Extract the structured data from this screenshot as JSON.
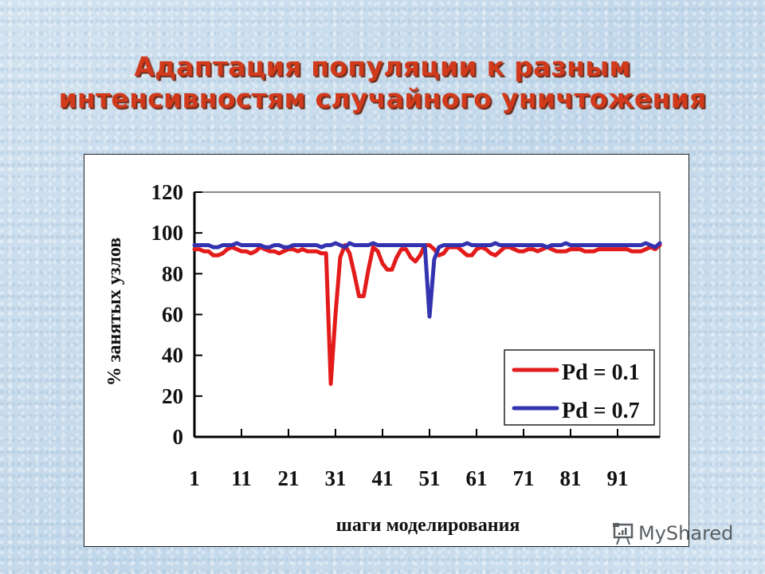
{
  "slide": {
    "title_line1": "Адаптация популяции к разным",
    "title_line2": "интенсивностям случайного уничтожения"
  },
  "watermark": {
    "text": "MyShared",
    "icon": "presentation-board-icon"
  },
  "colors": {
    "title": "#d23a1c",
    "series_pd01": "#e31b1b",
    "series_pd07": "#3333b0"
  },
  "chart_data": {
    "type": "line",
    "title": "",
    "xlabel": "шаги моделирования",
    "ylabel": "% занятых узлов",
    "ylim": [
      0,
      120
    ],
    "xlim": [
      1,
      100
    ],
    "yticks": [
      "0",
      "20",
      "40",
      "60",
      "80",
      "100",
      "120"
    ],
    "xticks": [
      "1",
      "11",
      "21",
      "31",
      "41",
      "51",
      "61",
      "71",
      "81",
      "91"
    ],
    "grid": false,
    "legend_position": "lower right (inside plot)",
    "series": [
      {
        "name": "Pd = 0.1",
        "color": "#e31b1b",
        "values": [
          92,
          92,
          91,
          91,
          89,
          89,
          90,
          92,
          93,
          92,
          91,
          91,
          90,
          91,
          93,
          92,
          91,
          91,
          90,
          91,
          92,
          92,
          91,
          92,
          91,
          91,
          91,
          90,
          90,
          26,
          60,
          88,
          94,
          90,
          80,
          69,
          69,
          82,
          93,
          91,
          85,
          82,
          82,
          88,
          92,
          92,
          88,
          86,
          89,
          94,
          94,
          92,
          89,
          90,
          93,
          93,
          93,
          91,
          89,
          89,
          92,
          93,
          92,
          90,
          89,
          91,
          93,
          93,
          92,
          91,
          91,
          92,
          92,
          91,
          92,
          93,
          92,
          91,
          91,
          91,
          92,
          92,
          92,
          91,
          91,
          91,
          92,
          92,
          92,
          92,
          92,
          92,
          92,
          91,
          91,
          91,
          92,
          93,
          92,
          94
        ]
      },
      {
        "name": "Pd = 0.7",
        "color": "#3333b0",
        "values": [
          94,
          94,
          94,
          94,
          93,
          93,
          94,
          94,
          94,
          95,
          94,
          94,
          94,
          94,
          94,
          93,
          93,
          94,
          94,
          93,
          93,
          94,
          94,
          94,
          94,
          94,
          94,
          93,
          94,
          94,
          95,
          94,
          93,
          95,
          94,
          94,
          94,
          94,
          95,
          94,
          94,
          94,
          94,
          94,
          94,
          94,
          94,
          94,
          94,
          94,
          59,
          87,
          93,
          94,
          94,
          94,
          94,
          94,
          95,
          94,
          94,
          94,
          94,
          94,
          95,
          94,
          94,
          94,
          94,
          94,
          94,
          94,
          94,
          94,
          94,
          93,
          94,
          94,
          94,
          95,
          94,
          94,
          94,
          94,
          94,
          94,
          94,
          94,
          94,
          94,
          94,
          94,
          94,
          94,
          94,
          94,
          95,
          94,
          93,
          95
        ]
      }
    ]
  }
}
